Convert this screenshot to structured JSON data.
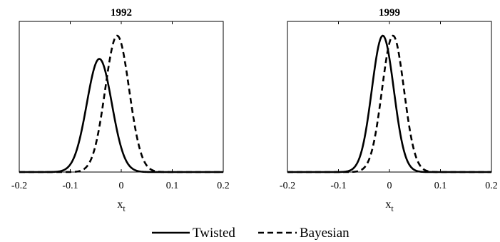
{
  "chart_data": [
    {
      "type": "line",
      "title": "1992",
      "xlabel": "x",
      "xlabel_sub": "t",
      "xlim": [
        -0.2,
        0.2
      ],
      "xticks": [
        "-0.2",
        "-0.1",
        "0",
        "0.1",
        "0.2"
      ],
      "xtick_values": [
        -0.2,
        -0.1,
        0,
        0.1,
        0.2
      ],
      "y_ticks_shown": false,
      "grid": false,
      "series": [
        {
          "name": "Twisted",
          "style": "solid",
          "peak_x": -0.043,
          "peak_y": 0.83,
          "sd": 0.0245
        },
        {
          "name": "Bayesian",
          "style": "dashed",
          "peak_x": -0.008,
          "peak_y": 1.0,
          "sd": 0.0235
        }
      ]
    },
    {
      "type": "line",
      "title": "1999",
      "xlabel": "x",
      "xlabel_sub": "t",
      "xlim": [
        -0.2,
        0.2
      ],
      "xticks": [
        "-0.2",
        "-0.1",
        "0",
        "0.1",
        "0.2"
      ],
      "xtick_values": [
        -0.2,
        -0.1,
        0,
        0.1,
        0.2
      ],
      "y_ticks_shown": false,
      "grid": false,
      "series": [
        {
          "name": "Twisted",
          "style": "solid",
          "peak_x": -0.013,
          "peak_y": 1.0,
          "sd": 0.0215
        },
        {
          "name": "Bayesian",
          "style": "dashed",
          "peak_x": 0.007,
          "peak_y": 1.0,
          "sd": 0.0215
        }
      ]
    }
  ],
  "legend": {
    "position": "bottom-center",
    "items": [
      {
        "label": "Twisted",
        "style": "solid"
      },
      {
        "label": "Bayesian",
        "style": "dashed"
      }
    ]
  },
  "colors": {
    "line": "#000000",
    "axes": "#000000",
    "background": "#ffffff"
  }
}
